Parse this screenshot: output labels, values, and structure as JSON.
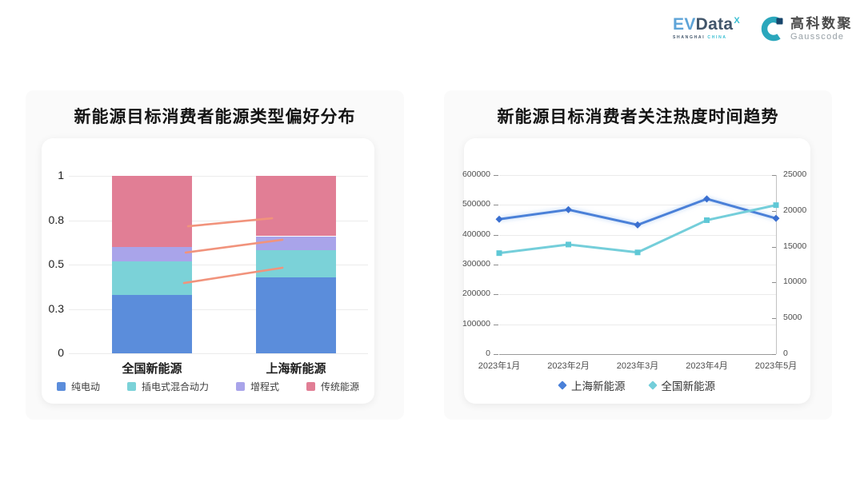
{
  "header": {
    "evdata": {
      "ev": "EV",
      "data": "Data",
      "x": "X",
      "sub_dark": "SHANGHAI",
      "sub_teal": "CHINA"
    },
    "gausscode": {
      "cn": "高科数聚",
      "en": "Gausscode",
      "icon_teal": "#2ba7bc",
      "icon_navy": "#17456b"
    }
  },
  "chart_data": [
    {
      "type": "bar",
      "stacked": true,
      "title": "新能源目标消费者能源类型偏好分布",
      "categories": [
        "全国新能源",
        "上海新能源"
      ],
      "series": [
        {
          "name": "纯电动",
          "color": "#5b8ddb",
          "values": [
            0.33,
            0.43
          ]
        },
        {
          "name": "插电式混合动力",
          "color": "#7bd2d8",
          "values": [
            0.19,
            0.15
          ]
        },
        {
          "name": "增程式",
          "color": "#a9a4ea",
          "values": [
            0.08,
            0.08
          ]
        },
        {
          "name": "传统能源",
          "color": "#e17e95",
          "values": [
            0.4,
            0.34
          ]
        }
      ],
      "yticks": [
        {
          "label": "0",
          "value": 0
        },
        {
          "label": "0.3",
          "value": 0.25
        },
        {
          "label": "0.5",
          "value": 0.5
        },
        {
          "label": "0.8",
          "value": 0.75
        },
        {
          "label": "1",
          "value": 1
        }
      ],
      "ylim": [
        0,
        1
      ],
      "grid": true,
      "legend_position": "bottom",
      "connector_color": "#f1937c",
      "connector_lines": [
        {
          "x1": 0.375,
          "v1": 0.716,
          "x2": 0.667,
          "v2": 0.761
        },
        {
          "x1": 0.367,
          "v1": 0.568,
          "x2": 0.703,
          "v2": 0.64
        },
        {
          "x1": 0.361,
          "v1": 0.396,
          "x2": 0.703,
          "v2": 0.482
        }
      ]
    },
    {
      "type": "line",
      "title": "新能源目标消费者关注热度时间趋势",
      "x": [
        "2023年1月",
        "2023年2月",
        "2023年3月",
        "2023年4月",
        "2023年5月"
      ],
      "series": [
        {
          "name": "上海新能源",
          "axis": "left",
          "color": "#4a80d8",
          "marker": "diamond",
          "marker_color": "#3a6fd0",
          "values": [
            452000,
            484000,
            433000,
            520000,
            455000
          ]
        },
        {
          "name": "全国新能源",
          "axis": "right",
          "color": "#74ceda",
          "marker": "square",
          "marker_color": "#5fc8d6",
          "values": [
            14100,
            15300,
            14200,
            18700,
            20800
          ]
        }
      ],
      "left_axis": {
        "min": 0,
        "max": 600000,
        "ticks": [
          "600000",
          "500000",
          "400000",
          "300000",
          "200000",
          "100000",
          "0"
        ]
      },
      "right_axis": {
        "min": 0,
        "max": 25000,
        "ticks": [
          "25000",
          "20000",
          "15000",
          "10000",
          "5000",
          "0"
        ]
      },
      "grid": true,
      "legend_position": "bottom"
    }
  ]
}
